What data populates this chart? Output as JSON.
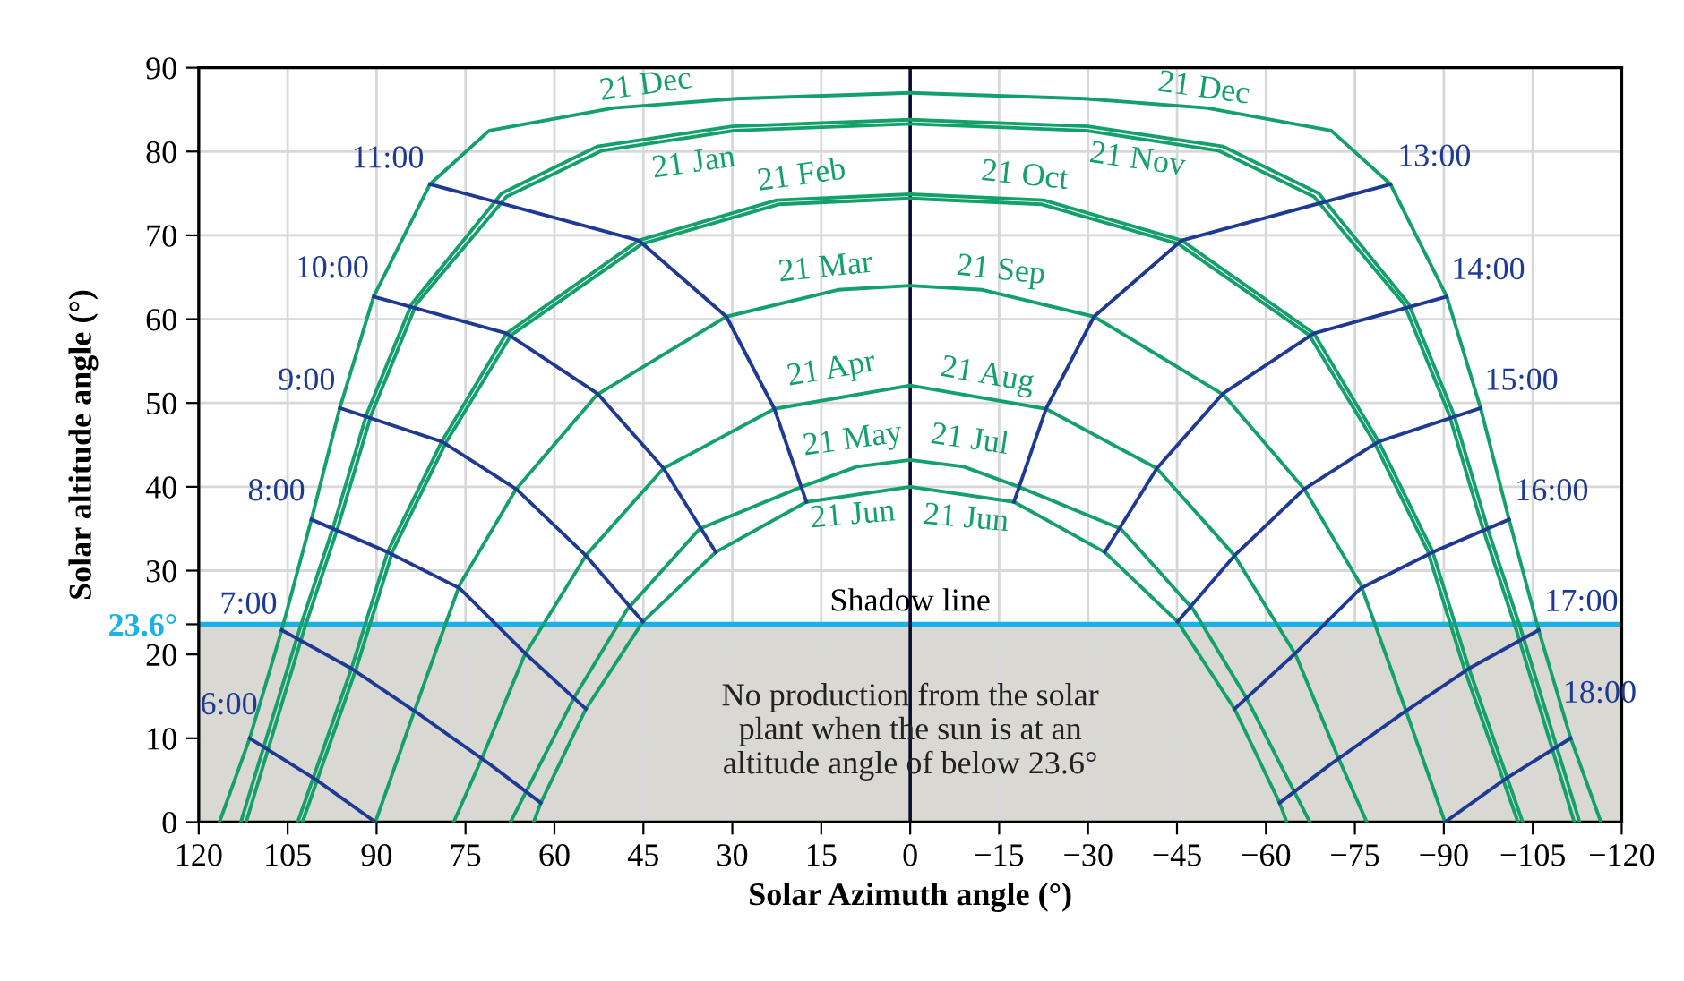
{
  "chart_data": {
    "type": "line",
    "xlabel": "Solar Azimuth angle (°)",
    "ylabel": "Solar altitude angle (°)",
    "xlim": [
      120,
      -120
    ],
    "xticks": [
      120,
      105,
      90,
      75,
      60,
      45,
      30,
      15,
      0,
      {
        "value": -15,
        "label": "−15"
      },
      {
        "value": -30,
        "label": "−30"
      },
      {
        "value": -45,
        "label": "−45"
      },
      {
        "value": -60,
        "label": "−60"
      },
      {
        "value": -75,
        "label": "−75"
      },
      {
        "value": -90,
        "label": "−90"
      },
      {
        "value": -105,
        "label": "−105"
      },
      {
        "value": -120,
        "label": "−120"
      }
    ],
    "ylim": [
      0,
      90
    ],
    "yticks": [
      0,
      10,
      20,
      {
        "value": 23.6,
        "label": "23.6°"
      },
      30,
      40,
      50,
      60,
      70,
      80,
      90
    ],
    "grid": true,
    "marker": "none",
    "line_style": "solid",
    "bands": [
      {
        "axis": "y",
        "from": 0,
        "to": 23.6,
        "color": "#d9d8d2"
      }
    ],
    "ref_lines": [
      {
        "axis": "y",
        "value": 23.6,
        "label": "Shadow line",
        "color": "#1ab0e8"
      },
      {
        "axis": "x",
        "value": 0,
        "color": "#0a0a30"
      }
    ],
    "series": [
      {
        "color": "#14a06a",
        "x": [
          116.5,
          111.4,
          106,
          101,
          96.2,
          90.5,
          81,
          71,
          50,
          29.4,
          0,
          -29.4,
          -50,
          -71,
          -81,
          -90.5,
          -96.2,
          -101,
          -106,
          -111.4,
          -116.5
        ],
        "values": [
          0,
          10,
          22.9,
          36.1,
          49.4,
          62.7,
          76.1,
          82.5,
          85.2,
          86.3,
          87,
          86.3,
          85.2,
          82.5,
          76.1,
          62.7,
          49.4,
          36.1,
          22.9,
          10,
          0
        ]
      },
      {
        "color": "#14a06a",
        "x": [
          112.9,
          103,
          97.4,
          91.7,
          84.1,
          68.9,
          52.8,
          30,
          0,
          -30,
          -52.8,
          -68.9,
          -84.1,
          -91.7,
          -97.4,
          -103,
          -112.9
        ],
        "values": [
          0,
          23,
          35,
          48.6,
          61.8,
          75,
          80.6,
          83,
          83.8,
          83,
          80.6,
          75,
          61.8,
          48.6,
          35,
          23,
          0
        ]
      },
      {
        "color": "#14a06a",
        "x": [
          112,
          102.2,
          96.6,
          90.9,
          83.3,
          68.1,
          52,
          29.6,
          0,
          -29.6,
          -52,
          -68.1,
          -83.3,
          -90.9,
          -96.6,
          -102.2,
          -112
        ],
        "values": [
          0,
          23,
          35,
          48.6,
          61.8,
          74.6,
          80.1,
          82.5,
          83.3,
          82.5,
          80.1,
          74.6,
          61.8,
          48.6,
          35,
          23,
          0
        ]
      },
      {
        "color": "#14a06a",
        "x": [
          103.3,
          94.2,
          88.1,
          79,
          68.1,
          45.8,
          22.5,
          0,
          -22.5,
          -45.8,
          -68.1,
          -79,
          -88.1,
          -94.2,
          -103.3
        ],
        "values": [
          0,
          18.4,
          32.3,
          45.4,
          58.3,
          69.4,
          74.2,
          74.9,
          74.2,
          69.4,
          58.3,
          45.4,
          32.3,
          18.4,
          0
        ]
      },
      {
        "color": "#14a06a",
        "x": [
          102.5,
          93.4,
          87.3,
          78.2,
          67.3,
          45.2,
          22.2,
          0,
          -22.2,
          -45.2,
          -67.3,
          -78.2,
          -87.3,
          -93.4,
          -102.5
        ],
        "values": [
          0,
          18.4,
          32.3,
          45.4,
          58.1,
          69,
          73.7,
          74.4,
          73.7,
          69,
          58.1,
          45.4,
          32.3,
          18.4,
          0
        ]
      },
      {
        "color": "#14a06a",
        "x": [
          90.2,
          83.6,
          76,
          66.5,
          52.8,
          31,
          12.2,
          0,
          -12.2,
          -31,
          -52.8,
          -66.5,
          -76,
          -83.6,
          -90.2
        ],
        "values": [
          0,
          13.3,
          28.3,
          39.7,
          51,
          60.3,
          63.5,
          64,
          63.5,
          60.3,
          51,
          39.7,
          28.3,
          13.3,
          0
        ]
      },
      {
        "color": "#14a06a",
        "x": [
          77,
          72,
          65,
          54.7,
          41.6,
          22.9,
          0,
          -22.9,
          -41.6,
          -54.7,
          -65,
          -72,
          -77
        ],
        "values": [
          0,
          8,
          20,
          31.8,
          42.2,
          49.3,
          52.1,
          49.3,
          42.2,
          31.8,
          20,
          8,
          0
        ]
      },
      {
        "color": "#14a06a",
        "x": [
          67.4,
          56.8,
          47.7,
          35.5,
          18.3,
          9,
          0,
          -9,
          -18.3,
          -35.5,
          -47.7,
          -56.8,
          -67.4
        ],
        "values": [
          0,
          14.7,
          25.4,
          35,
          40,
          42.4,
          43.2,
          42.4,
          40,
          35,
          25.4,
          14.7,
          0
        ]
      },
      {
        "color": "#14a06a",
        "x": [
          63.5,
          62.3,
          54.7,
          45.1,
          32.8,
          17.5,
          0,
          -17.5,
          -32.8,
          -45.1,
          -54.7,
          -62.3,
          -63.5
        ],
        "values": [
          0,
          2.3,
          13.5,
          23.9,
          32.2,
          38.2,
          40,
          38.2,
          32.2,
          23.9,
          13.5,
          2.3,
          0
        ]
      },
      {
        "name": "6:00",
        "color": "#1f3a93",
        "x": [
          111.4,
          100.3,
          90.2
        ],
        "values": [
          10,
          5.1,
          0
        ]
      },
      {
        "name": "7:00",
        "color": "#1f3a93",
        "x": [
          106,
          94.2,
          83.1,
          70.9,
          62.3
        ],
        "values": [
          22.9,
          18.3,
          13,
          6.9,
          2.3
        ]
      },
      {
        "name": "8:00",
        "color": "#1f3a93",
        "x": [
          101,
          88.1,
          76,
          64.9,
          54.7
        ],
        "values": [
          36.1,
          32.2,
          27.9,
          20.1,
          13.5
        ]
      },
      {
        "name": "9:00",
        "color": "#1f3a93",
        "x": [
          96.2,
          79,
          66.4,
          54.7,
          45.1
        ],
        "values": [
          49.4,
          45.4,
          39.7,
          31.8,
          23.9
        ]
      },
      {
        "name": "10:00",
        "color": "#1f3a93",
        "x": [
          90.5,
          68.1,
          52.7,
          41.6,
          32.8
        ],
        "values": [
          62.7,
          58.3,
          51.1,
          42.2,
          32.2
        ]
      },
      {
        "name": "11:00",
        "color": "#1f3a93",
        "x": [
          81,
          45.8,
          31,
          22.9,
          17.5
        ],
        "values": [
          76.1,
          69.4,
          60.3,
          49.3,
          38.2
        ]
      },
      {
        "name": "13:00",
        "color": "#1f3a93",
        "x": [
          -81,
          -45.8,
          -31,
          -22.9,
          -17.5
        ],
        "values": [
          76.1,
          69.4,
          60.3,
          49.3,
          38.2
        ]
      },
      {
        "name": "14:00",
        "color": "#1f3a93",
        "x": [
          -90.5,
          -68.1,
          -52.7,
          -41.6,
          -32.8
        ],
        "values": [
          62.7,
          58.3,
          51.1,
          42.2,
          32.2
        ]
      },
      {
        "name": "15:00",
        "color": "#1f3a93",
        "x": [
          -96.2,
          -79,
          -66.4,
          -54.7,
          -45.1
        ],
        "values": [
          49.4,
          45.4,
          39.7,
          31.8,
          23.9
        ]
      },
      {
        "name": "16:00",
        "color": "#1f3a93",
        "x": [
          -101,
          -88.1,
          -76,
          -64.9,
          -54.7
        ],
        "values": [
          36.1,
          32.2,
          27.9,
          20.1,
          13.5
        ]
      },
      {
        "name": "17:00",
        "color": "#1f3a93",
        "x": [
          -106,
          -94.2,
          -83.1,
          -70.9,
          -62.3
        ],
        "values": [
          22.9,
          18.3,
          13,
          6.9,
          2.3
        ]
      },
      {
        "name": "18:00",
        "color": "#1f3a93",
        "x": [
          -111.4,
          -100.3,
          -90.2
        ],
        "values": [
          10,
          5.1,
          0
        ]
      }
    ],
    "annotations": [
      "21 Dec",
      "21 Dec",
      "21 Jan",
      "21 Nov",
      "21 Feb",
      "21 Oct",
      "21 Mar",
      "21 Sep",
      "21 Apr",
      "21 Aug",
      "21 May",
      "21 Jul",
      "21 Jun",
      "21 Jun",
      "No production from the solar\nplant when the sun is at an\naltitude angle of below 23.6°"
    ]
  }
}
